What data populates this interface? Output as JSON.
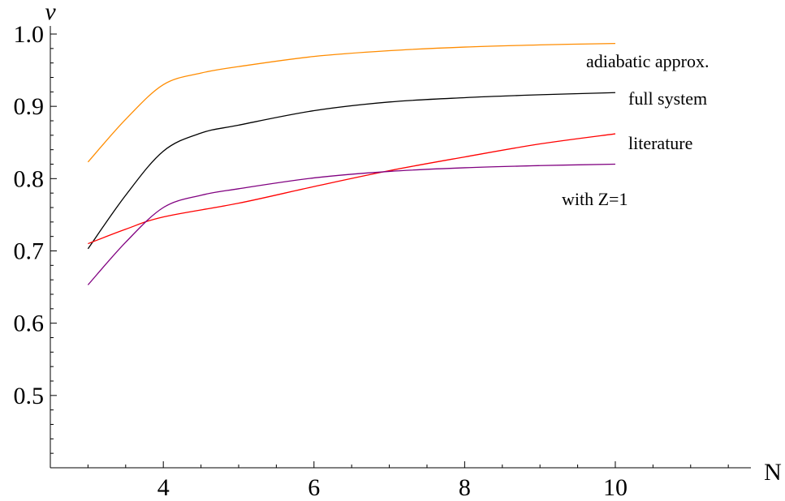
{
  "chart_data": {
    "type": "line",
    "xlabel": "N",
    "ylabel": "ν",
    "xlim": [
      2.5,
      11.8
    ],
    "ylim": [
      0.4,
      1.0
    ],
    "x_ticks": [
      4,
      6,
      8,
      10
    ],
    "x_tick_labels": [
      "4",
      "6",
      "8",
      "10"
    ],
    "x_minor_step": 0.5,
    "y_ticks": [
      0.5,
      0.6,
      0.7,
      0.8,
      0.9,
      1.0
    ],
    "y_tick_labels": [
      "0.5",
      "0.6",
      "0.7",
      "0.8",
      "0.9",
      "1.0"
    ],
    "y_minor_step": 0.02,
    "grid": false,
    "series": [
      {
        "name": "adiabatic approx.",
        "color": "#ff8c00",
        "x": [
          3,
          3.5,
          4,
          4.5,
          5,
          6,
          7,
          8,
          9,
          10
        ],
        "y": [
          0.823,
          0.882,
          0.93,
          0.946,
          0.955,
          0.969,
          0.977,
          0.982,
          0.985,
          0.987
        ]
      },
      {
        "name": "full system",
        "color": "#000000",
        "x": [
          3,
          3.5,
          4,
          4.5,
          5,
          6,
          7,
          8,
          9,
          10
        ],
        "y": [
          0.703,
          0.777,
          0.838,
          0.863,
          0.874,
          0.894,
          0.906,
          0.912,
          0.916,
          0.919
        ]
      },
      {
        "name": "literature",
        "color": "#ff0000",
        "x": [
          3,
          3.5,
          4,
          5,
          6,
          7,
          8,
          9,
          10
        ],
        "y": [
          0.71,
          0.73,
          0.747,
          0.766,
          0.789,
          0.811,
          0.83,
          0.848,
          0.862
        ]
      },
      {
        "name": "with Z=1",
        "color": "#800080",
        "x": [
          3,
          3.5,
          4,
          4.5,
          5,
          6,
          7,
          8,
          9,
          10
        ],
        "y": [
          0.653,
          0.712,
          0.76,
          0.777,
          0.786,
          0.801,
          0.81,
          0.815,
          0.818,
          0.82
        ]
      }
    ]
  }
}
